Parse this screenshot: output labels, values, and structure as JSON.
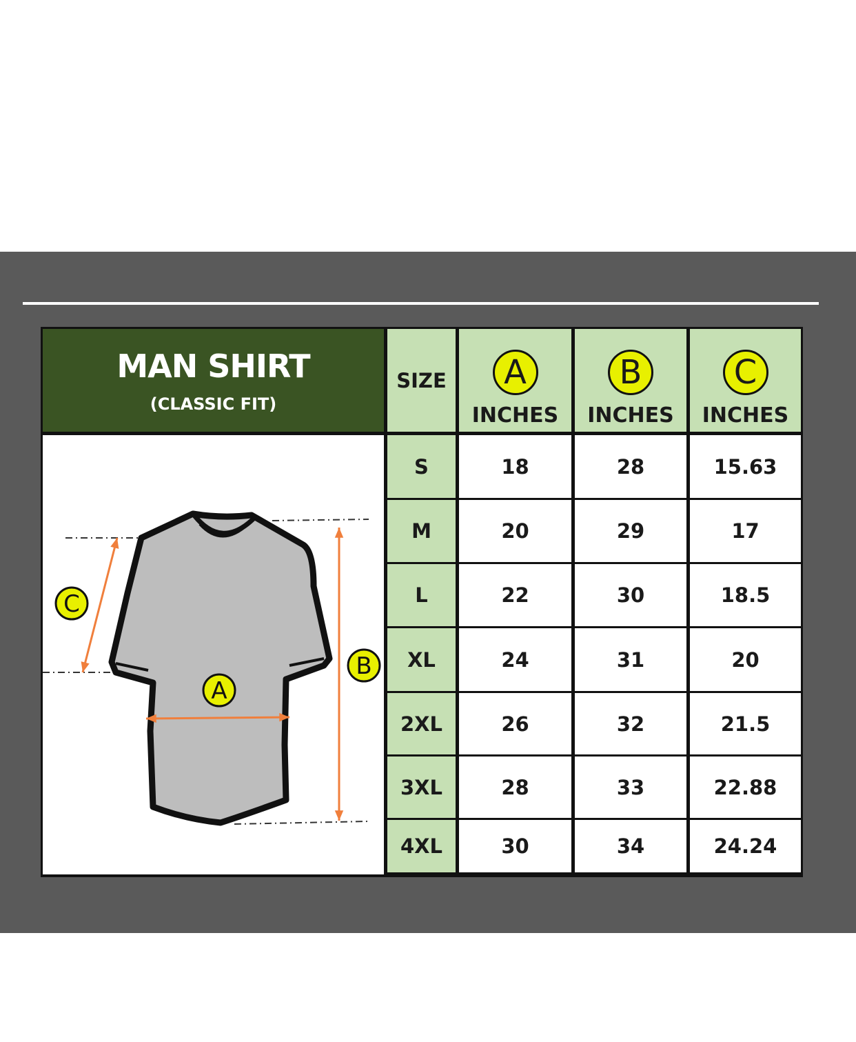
{
  "title": "MAN SHIRT",
  "subtitle": "(CLASSIC FIT)",
  "size_header": "SIZE",
  "columns": [
    {
      "letter": "A",
      "unit": "INCHES"
    },
    {
      "letter": "B",
      "unit": "INCHES"
    },
    {
      "letter": "C",
      "unit": "INCHES"
    }
  ],
  "rows": [
    {
      "size": "S",
      "a": "18",
      "b": "28",
      "c": "15.63"
    },
    {
      "size": "M",
      "a": "20",
      "b": "29",
      "c": "17"
    },
    {
      "size": "L",
      "a": "22",
      "b": "30",
      "c": "18.5"
    },
    {
      "size": "XL",
      "a": "24",
      "b": "31",
      "c": "20"
    },
    {
      "size": "2XL",
      "a": "26",
      "b": "32",
      "c": "21.5"
    },
    {
      "size": "3XL",
      "a": "28",
      "b": "33",
      "c": "22.88"
    },
    {
      "size": "4XL",
      "a": "30",
      "b": "34",
      "c": "24.24"
    }
  ],
  "diagram": {
    "label_a": "A",
    "label_b": "B",
    "label_c": "C"
  },
  "colors": {
    "panel": "#5a5a5a",
    "title_bg": "#3a5423",
    "header_bg": "#c6e0b4",
    "badge": "#e8f000",
    "arrow": "#f07f3c",
    "shirt": "#bdbdbd"
  }
}
